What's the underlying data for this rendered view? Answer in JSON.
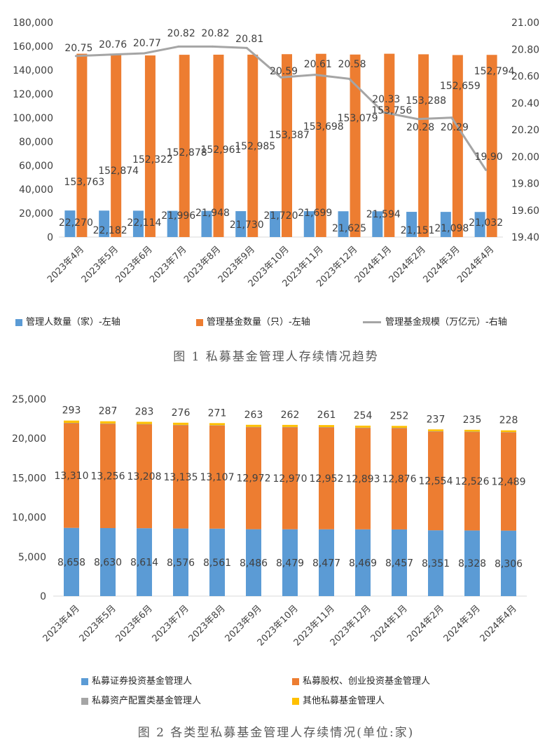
{
  "chart_data": [
    {
      "type": "bar",
      "categories": [
        "2023年4月",
        "2023年5月",
        "2023年6月",
        "2023年7月",
        "2023年8月",
        "2023年9月",
        "2023年10月",
        "2023年11月",
        "2023年12月",
        "2024年1月",
        "2024年2月",
        "2024年3月",
        "2024年4月"
      ],
      "series": [
        {
          "name": "管理人数量（家）-左轴",
          "type": "bar",
          "axis": "left",
          "color": "#5b9bd5",
          "values": [
            22270,
            22182,
            22114,
            21996,
            21948,
            21730,
            21720,
            21699,
            21625,
            21594,
            21151,
            21098,
            21032
          ],
          "labels": [
            "22,270",
            "22,182",
            "22,114",
            "21,996",
            "21,948",
            "21,730",
            "21,720",
            "21,699",
            "21,625",
            "21,594",
            "21,151",
            "21,098",
            "21,032"
          ]
        },
        {
          "name": "管理基金数量（只）-左轴",
          "type": "bar",
          "axis": "left",
          "color": "#ed7d31",
          "values": [
            153763,
            152874,
            152322,
            152878,
            152961,
            152985,
            153387,
            153698,
            153079,
            153756,
            153288,
            152659,
            152794
          ],
          "labels": [
            "153,763",
            "152,874",
            "152,322",
            "152,878",
            "152,961",
            "152,985",
            "153,387",
            "153,698",
            "153,079",
            "153,756",
            "153,288",
            "152,659",
            "152,794"
          ]
        },
        {
          "name": "管理基金规模（万亿元）-右轴",
          "type": "line",
          "axis": "right",
          "color": "#a5a5a5",
          "values": [
            20.75,
            20.76,
            20.77,
            20.82,
            20.82,
            20.81,
            20.59,
            20.61,
            20.58,
            20.33,
            20.28,
            20.29,
            19.9
          ],
          "labels": [
            "20.75",
            "20.76",
            "20.77",
            "20.82",
            "20.82",
            "20.81",
            "20.59",
            "20.61",
            "20.58",
            "20.33",
            "20.28",
            "20.29",
            "19.90"
          ]
        }
      ],
      "y_left": {
        "min": 0,
        "max": 180000,
        "ticks": [
          "0",
          "20,000",
          "40,000",
          "60,000",
          "80,000",
          "100,000",
          "120,000",
          "140,000",
          "160,000",
          "180,000"
        ]
      },
      "y_right": {
        "min": 19.4,
        "max": 21.0,
        "ticks": [
          "19.40",
          "19.60",
          "19.80",
          "20.00",
          "20.20",
          "20.40",
          "20.60",
          "20.80",
          "21.00"
        ]
      },
      "grid": false,
      "legend_position": "bottom",
      "caption": "图 1  私募基金管理人存续情况趋势"
    },
    {
      "type": "stacked-bar",
      "categories": [
        "2023年4月",
        "2023年5月",
        "2023年6月",
        "2023年7月",
        "2023年8月",
        "2023年9月",
        "2023年10月",
        "2023年11月",
        "2023年12月",
        "2024年1月",
        "2024年2月",
        "2024年3月",
        "2024年4月"
      ],
      "series": [
        {
          "name": "私募证券投资基金管理人",
          "color": "#5b9bd5",
          "values": [
            8658,
            8630,
            8614,
            8576,
            8561,
            8486,
            8479,
            8477,
            8469,
            8457,
            8351,
            8328,
            8306
          ],
          "labels": [
            "8,658",
            "8,630",
            "8,614",
            "8,576",
            "8,561",
            "8,486",
            "8,479",
            "8,477",
            "8,469",
            "8,457",
            "8,351",
            "8,328",
            "8,306"
          ]
        },
        {
          "name": "私募股权、创业投资基金管理人",
          "color": "#ed7d31",
          "values": [
            13310,
            13256,
            13208,
            13135,
            13107,
            12972,
            12970,
            12952,
            12893,
            12876,
            12554,
            12526,
            12489
          ],
          "labels": [
            "13,310",
            "13,256",
            "13,208",
            "13,135",
            "13,107",
            "12,972",
            "12,970",
            "12,952",
            "12,893",
            "12,876",
            "12,554",
            "12,526",
            "12,489"
          ]
        },
        {
          "name": "私募资产配置类基金管理人",
          "color": "#a5a5a5",
          "values": [
            9,
            9,
            9,
            9,
            9,
            9,
            9,
            9,
            9,
            9,
            9,
            9,
            9
          ]
        },
        {
          "name": "其他私募基金管理人",
          "color": "#ffc000",
          "values": [
            293,
            287,
            283,
            276,
            271,
            263,
            262,
            261,
            254,
            252,
            237,
            235,
            228
          ],
          "labels": [
            "293",
            "287",
            "283",
            "276",
            "271",
            "263",
            "262",
            "261",
            "254",
            "252",
            "237",
            "235",
            "228"
          ]
        }
      ],
      "y": {
        "min": 0,
        "max": 25000,
        "ticks": [
          "0",
          "5,000",
          "10,000",
          "15,000",
          "20,000",
          "25,000"
        ]
      },
      "grid": false,
      "legend_position": "bottom",
      "caption": "图 2  各类型私募基金管理人存续情况(单位:家)"
    }
  ]
}
